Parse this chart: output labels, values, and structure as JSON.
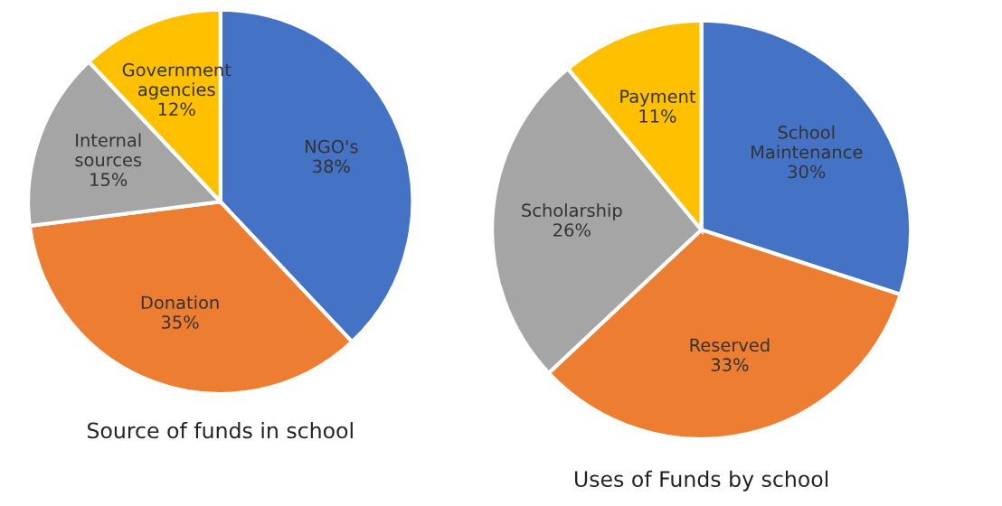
{
  "chart_data": [
    {
      "type": "pie",
      "title": "Source of funds in school",
      "categories": [
        "NGO's",
        "Donation",
        "Internal sources",
        "Government agencies"
      ],
      "values": [
        38,
        35,
        15,
        12
      ],
      "value_labels": [
        "38%",
        "35%",
        "15%",
        "12%"
      ],
      "colors": [
        "#4472c4",
        "#ed7d31",
        "#a5a5a5",
        "#ffc000"
      ]
    },
    {
      "type": "pie",
      "title": "Uses of Funds by school",
      "categories": [
        "School Maintenance",
        "Reserved",
        "Scholarship",
        "Payment"
      ],
      "values": [
        30,
        33,
        26,
        11
      ],
      "value_labels": [
        "30%",
        "33%",
        "26%",
        "11%"
      ],
      "colors": [
        "#4472c4",
        "#ed7d31",
        "#a5a5a5",
        "#ffc000"
      ]
    }
  ]
}
